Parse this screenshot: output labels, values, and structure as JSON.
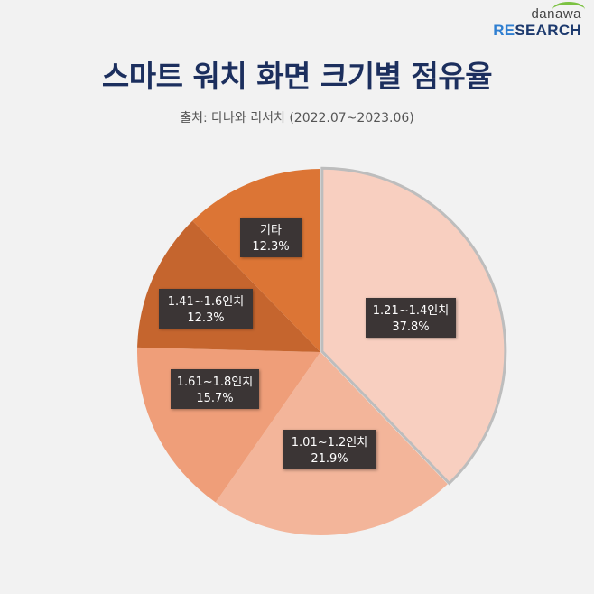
{
  "logo": {
    "small": "danawa",
    "big_prefix": "RE",
    "big_rest": "SEARCH"
  },
  "title": "스마트 워치 화면 크기별 점유율",
  "subtitle": "출처: 다나와 리서치 (2022.07~2023.06)",
  "chart_data": {
    "type": "pie",
    "title": "스마트 워치 화면 크기별 점유율",
    "subtitle": "출처: 다나와 리서치 (2022.07~2023.06)",
    "slices": [
      {
        "label": "1.21~1.4인치",
        "value": 37.8,
        "value_label": "37.8%",
        "color": "#f8cfc0"
      },
      {
        "label": "1.01~1.2인치",
        "value": 21.9,
        "value_label": "21.9%",
        "color": "#f3b59a"
      },
      {
        "label": "1.61~1.8인치",
        "value": 15.7,
        "value_label": "15.7%",
        "color": "#ef9e79"
      },
      {
        "label": "1.41~1.6인치",
        "value": 12.3,
        "value_label": "12.3%",
        "color": "#c5652e"
      },
      {
        "label": "기타",
        "value": 12.3,
        "value_label": "12.3%",
        "color": "#dc7535"
      }
    ],
    "highlighted_slice": "1.21~1.4인치",
    "legend": "none"
  }
}
